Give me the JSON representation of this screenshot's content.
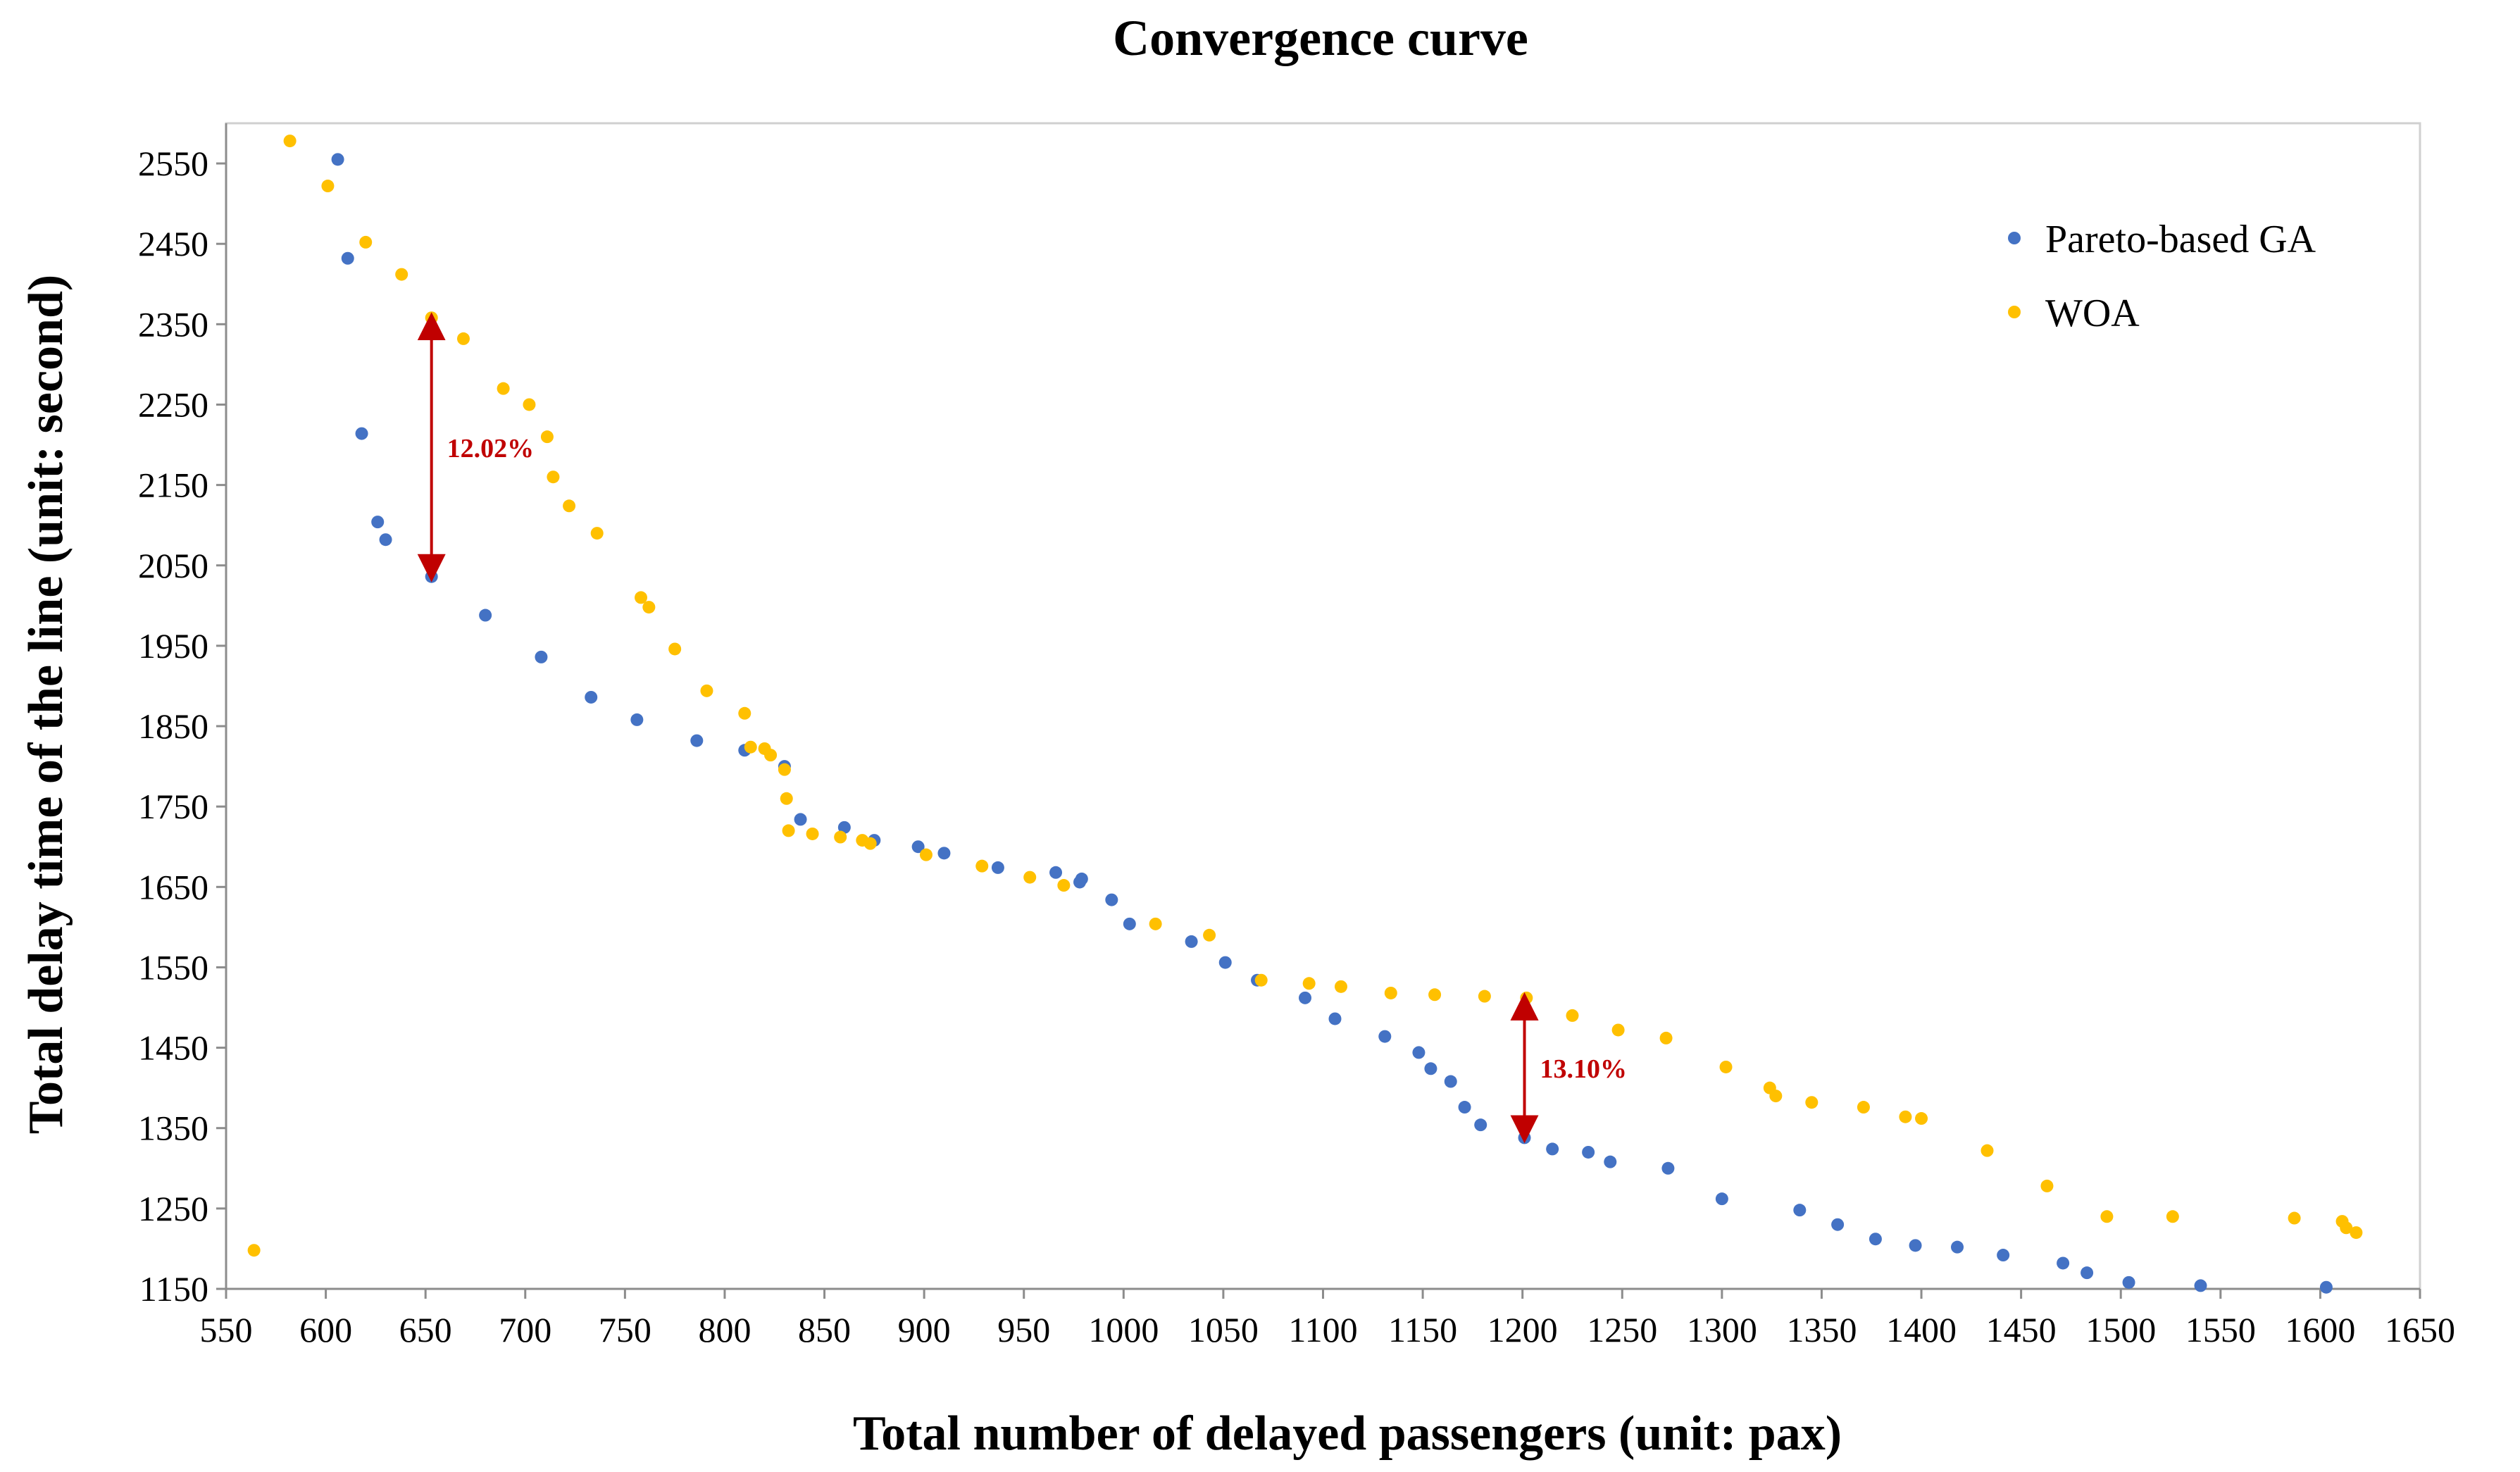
{
  "chart_data": {
    "type": "scatter",
    "title": "Convergence curve",
    "xlabel": "Total number of delayed passengers (unit: pax)",
    "ylabel": "Total delay time of the line (unit: second)",
    "xlim": [
      550,
      1650
    ],
    "ylim": [
      1150,
      2600
    ],
    "x_ticks": [
      550,
      600,
      650,
      700,
      750,
      800,
      850,
      900,
      950,
      1000,
      1050,
      1100,
      1150,
      1200,
      1250,
      1300,
      1350,
      1400,
      1450,
      1500,
      1550,
      1600,
      1650
    ],
    "y_ticks": [
      1150,
      1250,
      1350,
      1450,
      1550,
      1650,
      1750,
      1850,
      1950,
      2050,
      2150,
      2250,
      2350,
      2450,
      2550
    ],
    "grid": false,
    "legend_position": "top-right",
    "series": [
      {
        "name": "Pareto-based GA",
        "color": "#4472C4",
        "points": [
          [
            606,
            2555
          ],
          [
            611,
            2432
          ],
          [
            618,
            2214
          ],
          [
            626,
            2104
          ],
          [
            630,
            2082
          ],
          [
            653,
            2036
          ],
          [
            680,
            1988
          ],
          [
            708,
            1936
          ],
          [
            733,
            1886
          ],
          [
            756,
            1858
          ],
          [
            786,
            1832
          ],
          [
            810,
            1820
          ],
          [
            830,
            1800
          ],
          [
            838,
            1734
          ],
          [
            860,
            1724
          ],
          [
            875,
            1708
          ],
          [
            897,
            1700
          ],
          [
            910,
            1692
          ],
          [
            937,
            1674
          ],
          [
            966,
            1668
          ],
          [
            979,
            1660
          ],
          [
            978,
            1656
          ],
          [
            994,
            1634
          ],
          [
            1003,
            1604
          ],
          [
            1034,
            1582
          ],
          [
            1051,
            1556
          ],
          [
            1067,
            1534
          ],
          [
            1091,
            1512
          ],
          [
            1106,
            1486
          ],
          [
            1131,
            1464
          ],
          [
            1148,
            1444
          ],
          [
            1154,
            1424
          ],
          [
            1164,
            1408
          ],
          [
            1171,
            1376
          ],
          [
            1179,
            1354
          ],
          [
            1201,
            1338
          ],
          [
            1215,
            1324
          ],
          [
            1233,
            1320
          ],
          [
            1244,
            1308
          ],
          [
            1273,
            1300
          ],
          [
            1300,
            1262
          ],
          [
            1339,
            1248
          ],
          [
            1358,
            1230
          ],
          [
            1377,
            1212
          ],
          [
            1397,
            1204
          ],
          [
            1418,
            1202
          ],
          [
            1441,
            1192
          ],
          [
            1471,
            1182
          ],
          [
            1483,
            1170
          ],
          [
            1504,
            1158
          ],
          [
            1540,
            1154
          ],
          [
            1603,
            1152
          ]
        ]
      },
      {
        "name": "WOA",
        "color": "#FFC000",
        "points": [
          [
            564,
            1198
          ],
          [
            582,
            2578
          ],
          [
            601,
            2522
          ],
          [
            620,
            2452
          ],
          [
            638,
            2412
          ],
          [
            653,
            2358
          ],
          [
            669,
            2332
          ],
          [
            689,
            2270
          ],
          [
            702,
            2250
          ],
          [
            711,
            2210
          ],
          [
            714,
            2160
          ],
          [
            722,
            2124
          ],
          [
            736,
            2090
          ],
          [
            758,
            2010
          ],
          [
            762,
            1998
          ],
          [
            775,
            1946
          ],
          [
            791,
            1894
          ],
          [
            810,
            1866
          ],
          [
            813,
            1824
          ],
          [
            820,
            1822
          ],
          [
            823,
            1814
          ],
          [
            830,
            1796
          ],
          [
            831,
            1760
          ],
          [
            832,
            1720
          ],
          [
            844,
            1716
          ],
          [
            858,
            1712
          ],
          [
            869,
            1708
          ],
          [
            873,
            1704
          ],
          [
            901,
            1690
          ],
          [
            929,
            1676
          ],
          [
            953,
            1662
          ],
          [
            970,
            1652
          ],
          [
            1016,
            1604
          ],
          [
            1043,
            1590
          ],
          [
            1069,
            1534
          ],
          [
            1093,
            1530
          ],
          [
            1109,
            1526
          ],
          [
            1134,
            1518
          ],
          [
            1156,
            1516
          ],
          [
            1181,
            1514
          ],
          [
            1202,
            1512
          ],
          [
            1225,
            1490
          ],
          [
            1248,
            1472
          ],
          [
            1272,
            1462
          ],
          [
            1302,
            1426
          ],
          [
            1324,
            1400
          ],
          [
            1327,
            1390
          ],
          [
            1345,
            1382
          ],
          [
            1371,
            1376
          ],
          [
            1392,
            1364
          ],
          [
            1400,
            1362
          ],
          [
            1433,
            1322
          ],
          [
            1463,
            1278
          ],
          [
            1493,
            1240
          ],
          [
            1526,
            1240
          ],
          [
            1587,
            1238
          ],
          [
            1611,
            1234
          ],
          [
            1613,
            1226
          ],
          [
            1618,
            1220
          ]
        ]
      }
    ],
    "annotations": [
      {
        "label": "12.02%",
        "x": 653,
        "y_from": 2036,
        "y_to": 2358,
        "color": "#C00000"
      },
      {
        "label": "13.10%",
        "x": 1201,
        "y_from": 1338,
        "y_to": 1512,
        "color": "#C00000"
      }
    ]
  }
}
